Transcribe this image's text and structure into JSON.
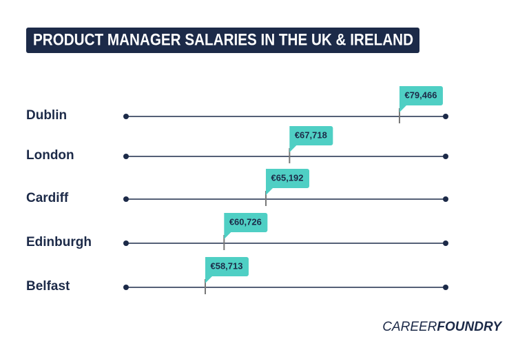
{
  "chart_data": {
    "type": "dot",
    "title": "PRODUCT MANAGER SALARIES IN THE UK & IRELAND",
    "categories": [
      "Dublin",
      "London",
      "Cardiff",
      "Edinburgh",
      "Belfast"
    ],
    "values": [
      79466,
      67718,
      65192,
      60726,
      58713
    ],
    "value_labels": [
      "€79,466",
      "€67,718",
      "€65,192",
      "€60,726",
      "€58,713"
    ],
    "xlim": [
      50250,
      84400
    ],
    "color": "#4fcfc4",
    "line_color": "#1c2a48",
    "source_logo": [
      "CAREER",
      "FOUNDRY"
    ]
  }
}
